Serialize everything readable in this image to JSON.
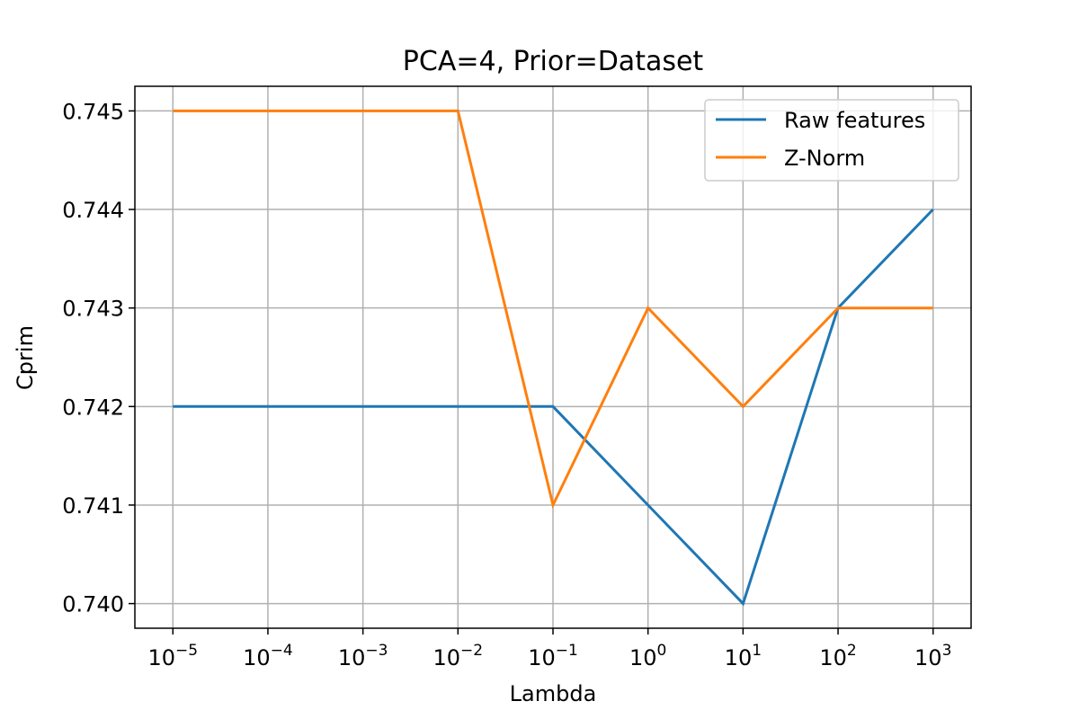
{
  "chart_data": {
    "type": "line",
    "title": "PCA=4, Prior=Dataset",
    "xlabel": "Lambda",
    "ylabel": "Cprim",
    "x_scale": "log",
    "x": [
      1e-05,
      0.0001,
      0.001,
      0.01,
      0.1,
      1,
      10,
      100,
      1000
    ],
    "x_tick_labels": [
      {
        "base": "10",
        "exp": "−5"
      },
      {
        "base": "10",
        "exp": "−4"
      },
      {
        "base": "10",
        "exp": "−3"
      },
      {
        "base": "10",
        "exp": "−2"
      },
      {
        "base": "10",
        "exp": "−1"
      },
      {
        "base": "10",
        "exp": "0"
      },
      {
        "base": "10",
        "exp": "1"
      },
      {
        "base": "10",
        "exp": "2"
      },
      {
        "base": "10",
        "exp": "3"
      }
    ],
    "y_ticks": [
      0.74,
      0.741,
      0.742,
      0.743,
      0.744,
      0.745
    ],
    "y_tick_labels": [
      "0.740",
      "0.741",
      "0.742",
      "0.743",
      "0.744",
      "0.745"
    ],
    "ylim": [
      0.73975,
      0.74525
    ],
    "grid": true,
    "legend_position": "top-right",
    "series": [
      {
        "name": "Raw features",
        "color": "#1f77b4",
        "values": [
          0.742,
          0.742,
          0.742,
          0.742,
          0.742,
          0.741,
          0.74,
          0.743,
          0.744
        ]
      },
      {
        "name": "Z-Norm",
        "color": "#ff7f0e",
        "values": [
          0.745,
          0.745,
          0.745,
          0.745,
          0.741,
          0.743,
          0.742,
          0.743,
          0.743
        ]
      }
    ]
  }
}
